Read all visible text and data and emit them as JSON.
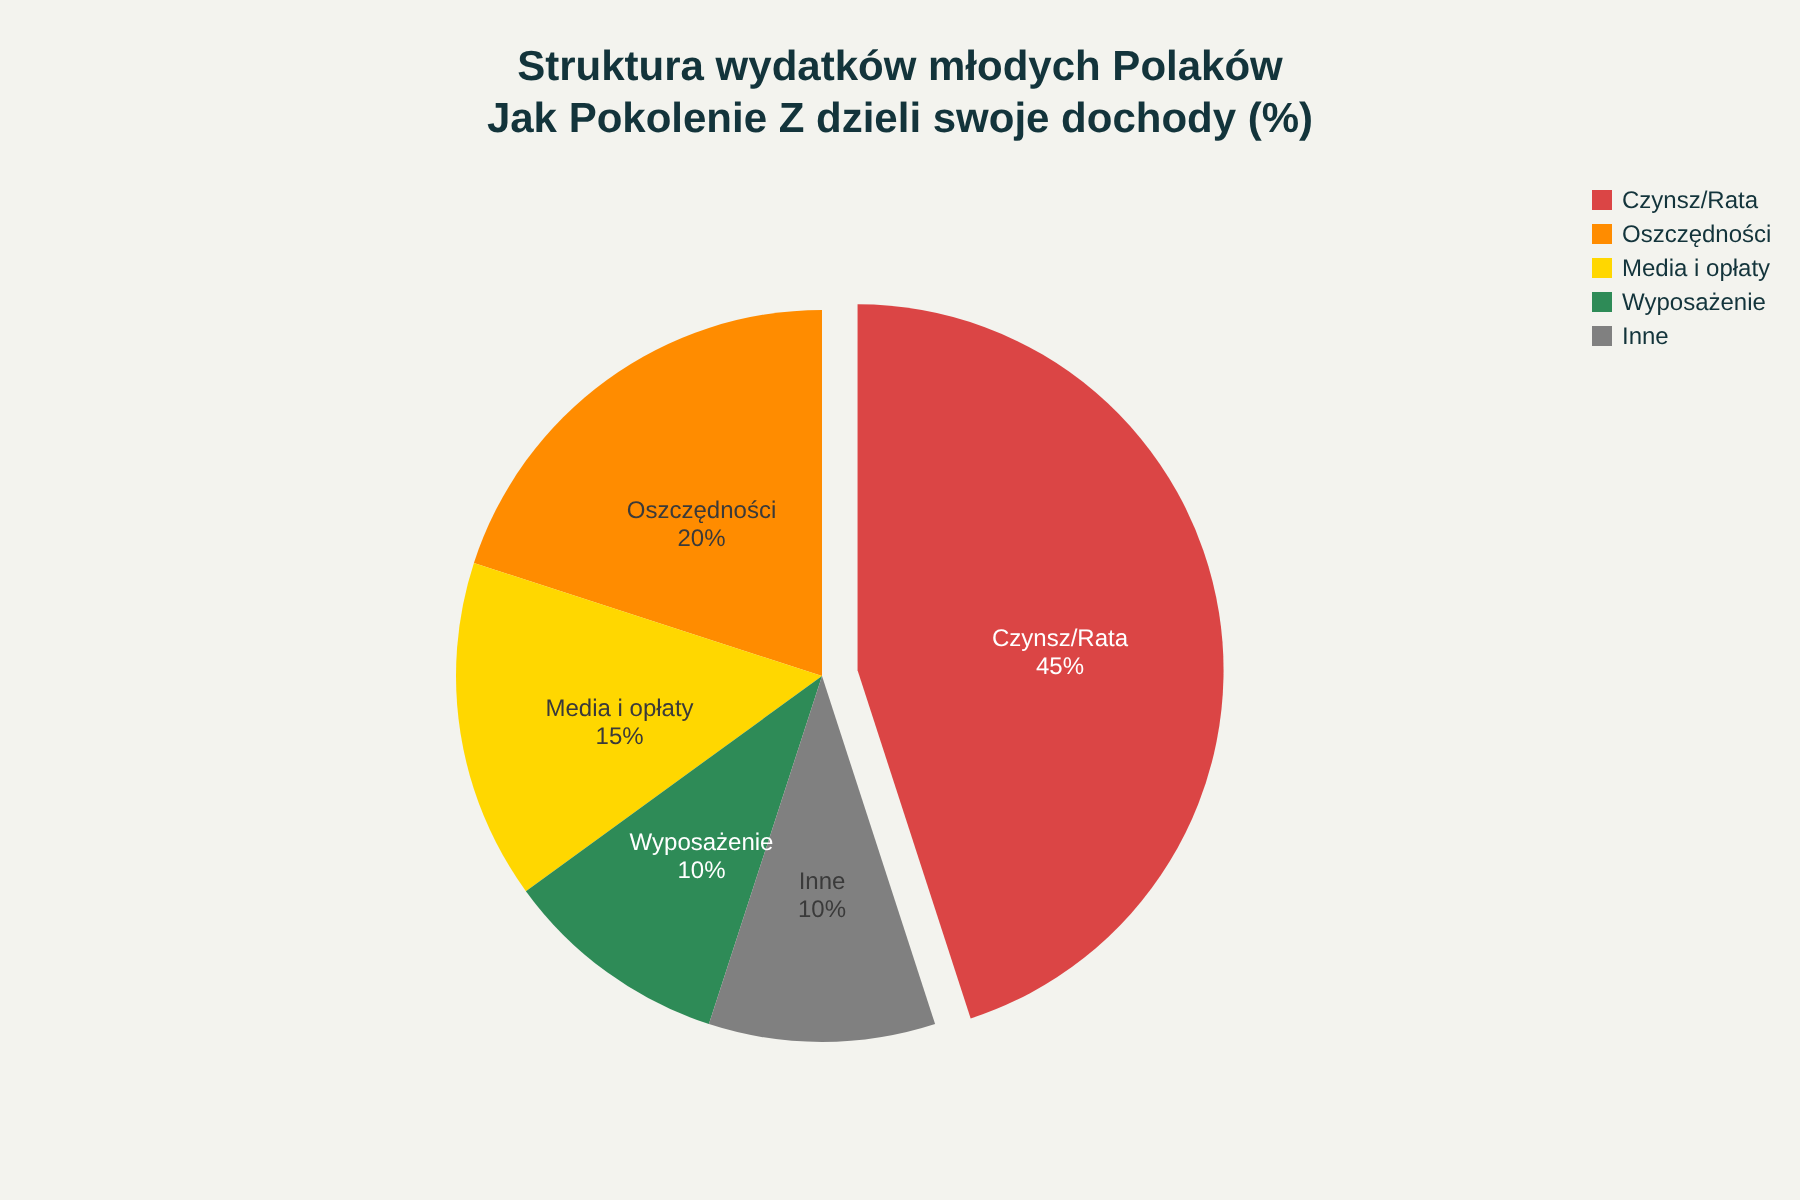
{
  "chart_data": {
    "type": "pie",
    "title": "Struktura wydatków młodych Polaków",
    "subtitle": "Jak Pokolenie Z dzieli swoje dochody (%)",
    "categories": [
      "Czynsz/Rata",
      "Oszczędności",
      "Media i opłaty",
      "Wyposażenie",
      "Inne"
    ],
    "values": [
      45,
      20,
      15,
      10,
      10
    ],
    "colors": [
      "#db4545",
      "#ff8c00",
      "#ffd700",
      "#2e8b57",
      "#808080"
    ],
    "value_labels": [
      "45%",
      "20%",
      "15%",
      "10%",
      "10%"
    ],
    "legend": "top right"
  }
}
